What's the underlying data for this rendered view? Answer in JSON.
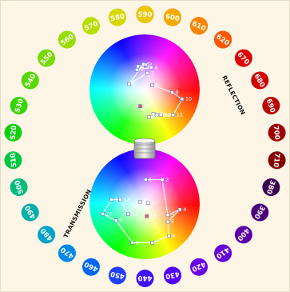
{
  "labels": {
    "reflection": "REFLECTION",
    "transmission": "TRANSMISSION"
  },
  "ring": {
    "badges": [
      {
        "label": "630",
        "angle": 0,
        "color": "#ff2a00"
      },
      {
        "label": "640",
        "angle": 12,
        "color": "#fb0f00"
      },
      {
        "label": "650",
        "angle": 24,
        "color": "#f50000"
      },
      {
        "label": "660",
        "angle": 36,
        "color": "#ee0000"
      },
      {
        "label": "670",
        "angle": 48,
        "color": "#e10000"
      },
      {
        "label": "680",
        "angle": 60,
        "color": "#cf0000"
      },
      {
        "label": "690",
        "angle": 72,
        "color": "#b80000"
      },
      {
        "label": "700",
        "angle": 84,
        "color": "#a00000"
      },
      {
        "label": "710",
        "angle": 96,
        "color": "#870000"
      },
      {
        "label": "380",
        "angle": 108,
        "color": "#3a0052"
      },
      {
        "label": "390",
        "angle": 120,
        "color": "#4a0078"
      },
      {
        "label": "400",
        "angle": 132,
        "color": "#5c00a8"
      },
      {
        "label": "410",
        "angle": 144,
        "color": "#6600d8"
      },
      {
        "label": "420",
        "angle": 156,
        "color": "#6a00f0"
      },
      {
        "label": "430",
        "angle": 168,
        "color": "#5500ff"
      },
      {
        "label": "440",
        "angle": 180,
        "color": "#3d10ff"
      },
      {
        "label": "450",
        "angle": 192,
        "color": "#2040ff"
      },
      {
        "label": "460",
        "angle": 204,
        "color": "#0066f5"
      },
      {
        "label": "470",
        "angle": 216,
        "color": "#0088e6"
      },
      {
        "label": "480",
        "angle": 228,
        "color": "#00a2c8"
      },
      {
        "label": "490",
        "angle": 240,
        "color": "#00b0a8"
      },
      {
        "label": "500",
        "angle": 252,
        "color": "#00bd7c"
      },
      {
        "label": "510",
        "angle": 264,
        "color": "#00c840"
      },
      {
        "label": "520",
        "angle": 276,
        "color": "#12cf12"
      },
      {
        "label": "530",
        "angle": 288,
        "color": "#36d400"
      },
      {
        "label": "540",
        "angle": 300,
        "color": "#56d800"
      },
      {
        "label": "550",
        "angle": 312,
        "color": "#76db00"
      },
      {
        "label": "560",
        "angle": 324,
        "color": "#98dd00"
      },
      {
        "label": "570",
        "angle": 336,
        "color": "#b8de00"
      },
      {
        "label": "580",
        "angle": 348,
        "color": "#d6d800"
      },
      {
        "label": "590",
        "angle": 360,
        "color": "#ebc800"
      },
      {
        "label": "600",
        "angle": 372,
        "color": "#f5ab00"
      },
      {
        "label": "610",
        "angle": 384,
        "color": "#fa8500"
      },
      {
        "label": "620",
        "angle": 396,
        "color": "#fd5800"
      }
    ]
  },
  "reflection_points": [
    {
      "label": "1",
      "u": -0.12,
      "v": -0.42
    },
    {
      "label": "2",
      "u": 0.02,
      "v": -0.45
    },
    {
      "label": "3",
      "u": -0.14,
      "v": -0.36
    },
    {
      "label": "4",
      "u": 0.12,
      "v": -0.4
    },
    {
      "label": "5",
      "u": -0.02,
      "v": -0.46
    },
    {
      "label": "6",
      "u": -0.28,
      "v": -0.1
    },
    {
      "label": "7",
      "u": 0.05,
      "v": -0.3
    },
    {
      "label": "8",
      "u": 0.14,
      "v": -0.08
    },
    {
      "label": "9",
      "u": 0.5,
      "v": 0.05
    },
    {
      "label": "10",
      "u": 0.68,
      "v": 0.17
    },
    {
      "label": "11",
      "u": 0.52,
      "v": 0.46
    },
    {
      "label": "12",
      "u": 0.3,
      "v": 0.46
    },
    {
      "label": "13",
      "u": 0.16,
      "v": 0.44
    },
    {
      "label": "14",
      "u": 0.22,
      "v": 0.46
    },
    {
      "label": "15",
      "u": 0.08,
      "v": 0.5
    },
    {
      "label": "16",
      "u": -0.08,
      "v": 0.3
    }
  ],
  "transmission_points": [
    {
      "label": "1",
      "u": 0.02,
      "v": -0.44
    },
    {
      "label": "2",
      "u": 0.32,
      "v": -0.44
    },
    {
      "label": "3",
      "u": 0.42,
      "v": 0.2
    },
    {
      "label": "4",
      "u": 0.64,
      "v": 0.1
    },
    {
      "label": "5",
      "u": 0.42,
      "v": 0.32
    },
    {
      "label": "6",
      "u": 0.44,
      "v": 0.58
    },
    {
      "label": "7",
      "u": 0.14,
      "v": 0.7
    },
    {
      "label": "8",
      "u": -0.22,
      "v": 0.7
    },
    {
      "label": "9",
      "u": -0.52,
      "v": 0.3
    },
    {
      "label": "10",
      "u": -0.76,
      "v": 0.18
    },
    {
      "label": "11",
      "u": -0.6,
      "v": -0.08
    },
    {
      "label": "12",
      "u": -0.44,
      "v": -0.08
    },
    {
      "label": "13",
      "u": -0.3,
      "v": 0.18
    },
    {
      "label": "14",
      "u": -0.08,
      "v": -0.04
    },
    {
      "label": "15",
      "u": 0.06,
      "v": -0.02
    },
    {
      "label": "16",
      "u": 0.04,
      "v": 0.22
    }
  ],
  "colors": {
    "panel_bg": "#fdf6e7",
    "connector_line": "#ffffff",
    "point_fill": "#ffffff",
    "point_accent": "#ff5a5a",
    "stack_light": "#e8e8e8",
    "stack_dark": "#9a9a9a"
  }
}
